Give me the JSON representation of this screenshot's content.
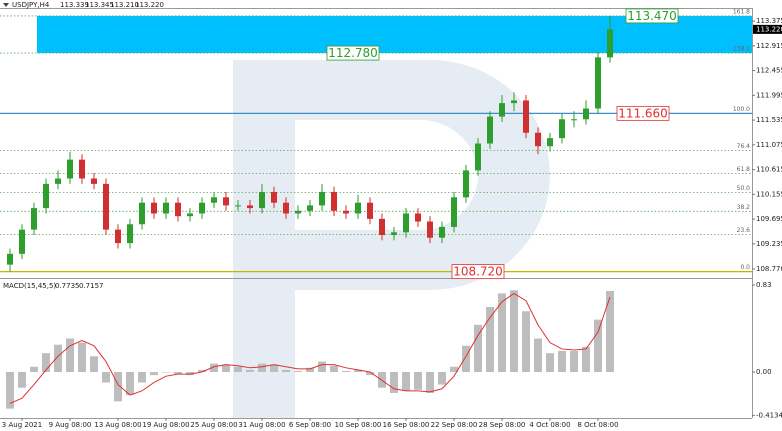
{
  "chart_data": [
    {
      "type": "candlestick",
      "title": "USDJPY,H4",
      "quote": [
        "113.339",
        "113.345",
        "113.210",
        "113.220"
      ],
      "categories": [
        null,
        "3 Aug 2021",
        null,
        null,
        null,
        "9 Aug 08:00",
        null,
        null,
        null,
        "13 Aug 08:00",
        null,
        null,
        null,
        "19 Aug 08:00",
        null,
        null,
        null,
        "25 Aug 08:00",
        null,
        null,
        null,
        "31 Aug 08:00",
        null,
        null,
        null,
        "6 Sep 08:00",
        null,
        null,
        null,
        "10 Sep 08:00",
        null,
        null,
        null,
        "16 Sep 08:00",
        null,
        null,
        null,
        "22 Sep 08:00",
        null,
        null,
        null,
        "28 Sep 08:00",
        null,
        null,
        null,
        "4 Oct 08:00",
        null,
        null,
        null,
        "8 Oct 08:00",
        null
      ],
      "open": [
        108.85,
        109.05,
        109.5,
        109.9,
        110.35,
        110.45,
        110.8,
        110.45,
        110.35,
        109.5,
        109.25,
        109.6,
        110.0,
        109.8,
        110.0,
        109.75,
        109.8,
        110.0,
        110.1,
        109.95,
        109.95,
        109.9,
        110.2,
        110.0,
        109.8,
        109.85,
        109.95,
        110.2,
        109.85,
        109.8,
        110.0,
        109.7,
        109.4,
        109.45,
        109.8,
        109.65,
        109.35,
        109.55,
        110.1,
        110.6,
        111.1,
        111.6,
        111.85,
        111.9,
        111.3,
        111.05,
        111.2,
        111.55,
        111.55,
        111.75,
        112.7
      ],
      "high": [
        109.15,
        109.6,
        110.0,
        110.45,
        110.6,
        110.95,
        110.9,
        110.55,
        110.45,
        109.6,
        109.7,
        110.1,
        110.1,
        110.1,
        110.1,
        109.9,
        110.1,
        110.2,
        110.2,
        110.05,
        110.05,
        110.35,
        110.3,
        110.1,
        109.95,
        110.05,
        110.35,
        110.3,
        109.95,
        110.15,
        110.1,
        109.8,
        109.55,
        109.9,
        109.9,
        109.75,
        109.65,
        110.2,
        110.7,
        111.2,
        111.7,
        112.0,
        112.05,
        112.0,
        111.4,
        111.3,
        111.65,
        111.7,
        111.9,
        112.8,
        113.47
      ],
      "low": [
        108.72,
        108.95,
        109.4,
        109.8,
        110.25,
        110.35,
        110.35,
        110.25,
        109.4,
        109.15,
        109.15,
        109.5,
        109.7,
        109.7,
        109.65,
        109.65,
        109.7,
        109.9,
        109.85,
        109.85,
        109.8,
        109.8,
        109.9,
        109.7,
        109.7,
        109.75,
        109.85,
        109.75,
        109.7,
        109.7,
        109.6,
        109.3,
        109.3,
        109.35,
        109.55,
        109.25,
        109.25,
        109.45,
        110.0,
        110.5,
        111.0,
        111.5,
        111.7,
        111.2,
        110.9,
        110.95,
        111.1,
        111.4,
        111.45,
        111.65,
        112.6
      ],
      "close": [
        109.05,
        109.5,
        109.9,
        110.35,
        110.45,
        110.8,
        110.45,
        110.35,
        109.5,
        109.25,
        109.6,
        110.0,
        109.8,
        110.0,
        109.75,
        109.8,
        110.0,
        110.1,
        109.95,
        109.95,
        109.9,
        110.2,
        110.0,
        109.8,
        109.85,
        109.95,
        110.2,
        109.85,
        109.8,
        110.0,
        109.7,
        109.4,
        109.45,
        109.8,
        109.65,
        109.35,
        109.55,
        110.1,
        110.6,
        111.1,
        111.6,
        111.85,
        111.9,
        111.3,
        111.05,
        111.2,
        111.55,
        111.55,
        111.75,
        112.7,
        113.22
      ],
      "up_color": "#2e9e2e",
      "down_color": "#d03030",
      "ylim": [
        108.62,
        113.58
      ],
      "yticks": [
        {
          "value": 113.375,
          "label": "113.375"
        },
        {
          "value": 112.915,
          "label": "112.915"
        },
        {
          "value": 112.455,
          "label": "112.455"
        },
        {
          "value": 111.995,
          "label": "111.995"
        },
        {
          "value": 111.535,
          "label": "111.535"
        },
        {
          "value": 111.075,
          "label": "111.075"
        },
        {
          "value": 110.615,
          "label": "110.615"
        },
        {
          "value": 110.155,
          "label": "110.155"
        },
        {
          "value": 109.695,
          "label": "109.695"
        },
        {
          "value": 109.235,
          "label": "109.235"
        },
        {
          "value": 108.77,
          "label": "108.770"
        }
      ],
      "last_price": {
        "value": 113.22,
        "label": "113.220"
      },
      "zone": [
        112.78,
        113.47
      ],
      "zone_color": "#00bfff",
      "fib_levels": [
        {
          "value": 108.72,
          "label": "0.0"
        },
        {
          "value": 109.41,
          "label": "23.6"
        },
        {
          "value": 109.84,
          "label": "38.2"
        },
        {
          "value": 110.19,
          "label": "50.0"
        },
        {
          "value": 110.54,
          "label": "61.8"
        },
        {
          "value": 110.97,
          "label": "76.4"
        },
        {
          "value": 111.66,
          "label": "100.0"
        },
        {
          "value": 112.78,
          "label": "138.2"
        },
        {
          "value": 113.47,
          "label": "161.8"
        }
      ],
      "fib_color": "#5aa55a",
      "price_lines": [
        {
          "value": 113.47,
          "label": "113.470",
          "color": "#2e9e2e"
        },
        {
          "value": 112.78,
          "label": "112.780",
          "color": "#2e9e2e"
        },
        {
          "value": 111.66,
          "label": "111.660",
          "color": "#e03030",
          "line_color": "#3a8fc9"
        },
        {
          "value": 108.72,
          "label": "108.720",
          "color": "#e03030",
          "line_color": "#c8b400"
        }
      ]
    },
    {
      "type": "macd",
      "title": "MACD(15,45,5)",
      "histogram": [
        -0.35,
        -0.15,
        0.05,
        0.18,
        0.26,
        0.32,
        0.28,
        0.15,
        -0.1,
        -0.28,
        -0.22,
        -0.1,
        -0.03,
        0.0,
        -0.02,
        -0.03,
        0.02,
        0.08,
        0.07,
        0.05,
        0.02,
        0.08,
        0.07,
        0.02,
        0.01,
        0.04,
        0.1,
        0.06,
        0.01,
        0.02,
        -0.03,
        -0.15,
        -0.2,
        -0.18,
        -0.17,
        -0.2,
        -0.12,
        0.05,
        0.25,
        0.45,
        0.62,
        0.75,
        0.78,
        0.58,
        0.32,
        0.18,
        0.2,
        0.2,
        0.24,
        0.5,
        0.7735
      ],
      "signal": [
        -0.3,
        -0.25,
        -0.12,
        0.02,
        0.15,
        0.25,
        0.3,
        0.25,
        0.1,
        -0.12,
        -0.22,
        -0.18,
        -0.1,
        -0.04,
        -0.02,
        -0.02,
        0.0,
        0.05,
        0.07,
        0.06,
        0.04,
        0.05,
        0.07,
        0.05,
        0.03,
        0.03,
        0.07,
        0.07,
        0.04,
        0.02,
        0.0,
        -0.08,
        -0.16,
        -0.18,
        -0.18,
        -0.19,
        -0.16,
        -0.04,
        0.15,
        0.35,
        0.52,
        0.67,
        0.75,
        0.68,
        0.45,
        0.28,
        0.22,
        0.21,
        0.22,
        0.38,
        0.7157
      ],
      "histogram_color": "#bdbdbd",
      "signal_color": "#e03030",
      "ylim": [
        -0.439,
        0.878
      ],
      "yticks": [
        0.83,
        {
          "value": 0,
          "label": "0.00"
        },
        -0.4134
      ]
    }
  ]
}
